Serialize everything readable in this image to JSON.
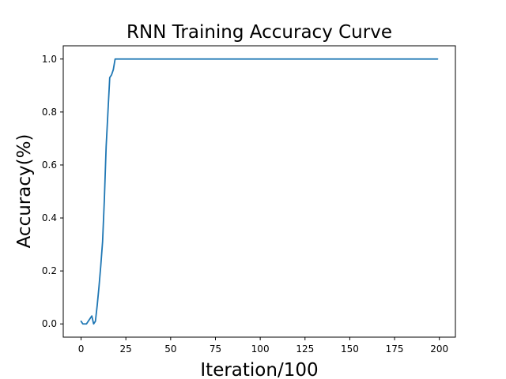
{
  "chart_data": {
    "type": "line",
    "title": "RNN Training Accuracy Curve",
    "xlabel": "Iteration/100",
    "ylabel": "Accuracy(%)",
    "xlim": [
      -9.95,
      208.95
    ],
    "ylim": [
      -0.05,
      1.05
    ],
    "xticks": [
      0,
      25,
      50,
      75,
      100,
      125,
      150,
      175,
      200
    ],
    "yticks": [
      0.0,
      0.2,
      0.4,
      0.6,
      0.8,
      1.0
    ],
    "ytick_labels": [
      "0.0",
      "0.2",
      "0.4",
      "0.6",
      "0.8",
      "1.0"
    ],
    "grid": false,
    "legend": "none",
    "series": [
      {
        "color": "#1f77b4",
        "x": [
          0,
          1,
          2,
          3,
          4,
          5,
          6,
          7,
          8,
          9,
          10,
          11,
          12,
          13,
          14,
          15,
          16,
          17,
          18,
          19,
          20,
          199
        ],
        "y": [
          0.01,
          0.0,
          0.0,
          0.0,
          0.01,
          0.02,
          0.03,
          0.0,
          0.01,
          0.07,
          0.14,
          0.22,
          0.31,
          0.47,
          0.67,
          0.8,
          0.93,
          0.94,
          0.96,
          1.0,
          1.0,
          1.0
        ]
      }
    ]
  }
}
